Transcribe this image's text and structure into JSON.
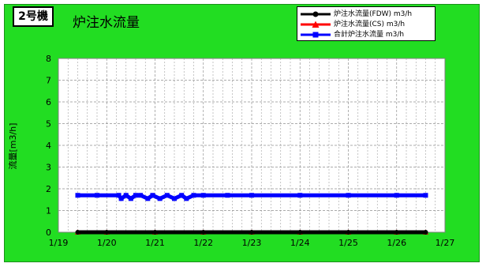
{
  "chart_data": {
    "type": "line",
    "unit_label": "2号機",
    "title": "炉注水流量",
    "ylabel": "流量[m3/h]",
    "xlabel": "",
    "x_tick_labels": [
      "1/19",
      "1/20",
      "1/21",
      "1/22",
      "1/23",
      "1/24",
      "1/25",
      "1/26",
      "1/27"
    ],
    "xlim": [
      0,
      8
    ],
    "ylim": [
      0,
      8
    ],
    "y_ticks": [
      0,
      1,
      2,
      3,
      4,
      5,
      6,
      7,
      8
    ],
    "grid": true,
    "legend_position": "top-right",
    "series": [
      {
        "name": "炉注水流量(FDW) m3/h",
        "color": "#000000",
        "marker": "circle",
        "x": [
          0.4,
          1.0,
          2.0,
          3.0,
          4.0,
          5.0,
          6.0,
          7.0,
          7.6
        ],
        "values": [
          0,
          0,
          0,
          0,
          0,
          0,
          0,
          0,
          0
        ]
      },
      {
        "name": "炉注水流量(CS) m3/h",
        "color": "#ff0000",
        "marker": "triangle",
        "x": [
          0.4,
          1.0,
          2.0,
          3.0,
          4.0,
          5.0,
          6.0,
          7.0,
          7.6
        ],
        "values": [
          0,
          0,
          0,
          0,
          0,
          0,
          0,
          0,
          0
        ]
      },
      {
        "name": "合計炉注水流量 m3/h",
        "color": "#0000ff",
        "marker": "square",
        "x": [
          0.4,
          0.8,
          1.25,
          1.3,
          1.4,
          1.5,
          1.6,
          1.7,
          1.85,
          1.95,
          2.1,
          2.25,
          2.4,
          2.55,
          2.65,
          2.8,
          3.0,
          3.5,
          4.0,
          5.0,
          6.0,
          7.0,
          7.6
        ],
        "values": [
          1.7,
          1.7,
          1.7,
          1.55,
          1.7,
          1.55,
          1.7,
          1.7,
          1.55,
          1.7,
          1.55,
          1.7,
          1.55,
          1.7,
          1.55,
          1.7,
          1.7,
          1.7,
          1.7,
          1.7,
          1.7,
          1.7,
          1.7
        ]
      }
    ]
  }
}
